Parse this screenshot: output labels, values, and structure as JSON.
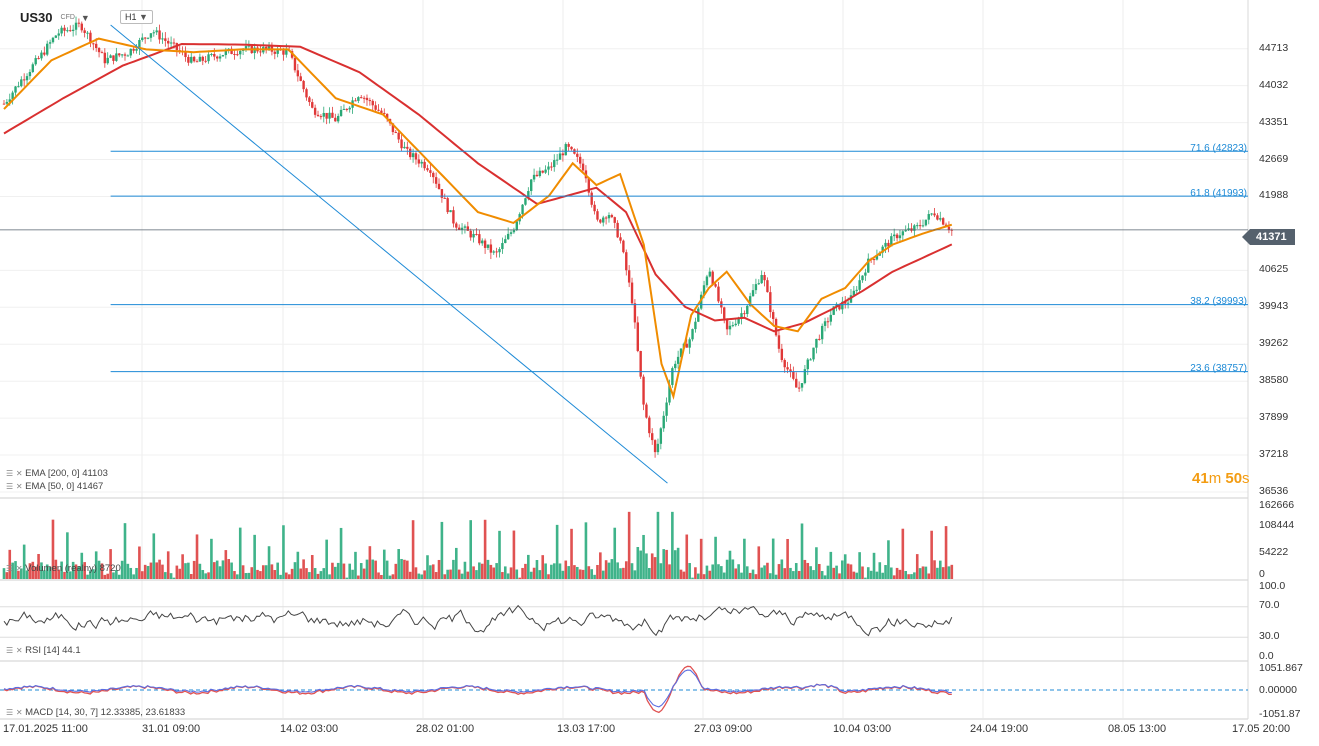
{
  "header": {
    "symbol": "US30",
    "class": "CFD",
    "timeframe": "H1"
  },
  "current_price": "41371",
  "timer": {
    "m": "41",
    "m_unit": "m",
    "s": "50",
    "s_unit": "s"
  },
  "indicators": {
    "ema200": "EMA [200,  0]  41103",
    "ema50": "EMA [50,  0]  41467",
    "volume": "Volumen (realny)  8720",
    "rsi": "RSI  [14]  44.1",
    "macd": "MACD  [14,  30,  7]  12.33385,   23.61833"
  },
  "fib_labels": [
    "71.6 (42823)",
    "61.8 (41993)",
    "38.2 (39993)",
    "23.6 (38757)"
  ],
  "colors": {
    "up": "#2aa876",
    "down": "#e03838",
    "ema50": "#f08c00",
    "ema200": "#d93030",
    "fib": "#1d8ad6",
    "rsi": "#444444"
  },
  "chart_data": {
    "type": "line",
    "title": "US30 CFD H1",
    "price_ticks": [
      "44713",
      "44032",
      "43351",
      "42669",
      "41988",
      "40625",
      "39943",
      "39262",
      "38580",
      "37899",
      "37218",
      "36536"
    ],
    "volume_ticks": [
      "162666",
      "108444",
      "54222",
      "0"
    ],
    "rsi_ticks": [
      "100.0",
      "70.0",
      "30.0",
      "0.0"
    ],
    "macd_ticks": [
      "1051.867",
      "0.00000",
      "-1051.87"
    ],
    "x_labels": [
      "17.01.2025  11:00",
      "31.01  09:00",
      "14.02  03:00",
      "28.02  01:00",
      "13.03  17:00",
      "27.03  09:00",
      "10.04  03:00",
      "24.04  19:00",
      "08.05  13:00",
      "17.05  20:00"
    ],
    "ylim": [
      36536,
      45280
    ],
    "series": [
      {
        "name": "close",
        "x": [
          0,
          3,
          6,
          9,
          13,
          17,
          21,
          25,
          28,
          32,
          36,
          40,
          44,
          48,
          52,
          56,
          60,
          64,
          68,
          72,
          76,
          80,
          83,
          86,
          89,
          92,
          95,
          98,
          100,
          102,
          104,
          106,
          108,
          110,
          113,
          116,
          119,
          122,
          125,
          128,
          131,
          134,
          137,
          140,
          143,
          146,
          148,
          151,
          154,
          157,
          160
        ],
        "values": [
          43700,
          44150,
          44550,
          45000,
          45150,
          44500,
          44650,
          45050,
          44800,
          44450,
          44600,
          44700,
          44700,
          44650,
          43600,
          43400,
          43900,
          43500,
          42800,
          42500,
          41500,
          41200,
          40900,
          41400,
          42300,
          42500,
          42900,
          42500,
          41500,
          41700,
          41200,
          40100,
          38100,
          37200,
          38900,
          39400,
          40700,
          39500,
          39900,
          40600,
          39100,
          38400,
          39300,
          39900,
          40100,
          40800,
          41000,
          41300,
          41400,
          41700,
          41371
        ]
      },
      {
        "name": "EMA [200, 0]",
        "x": [
          0,
          10,
          20,
          30,
          40,
          50,
          60,
          70,
          80,
          90,
          100,
          105,
          110,
          115,
          120,
          125,
          130,
          135,
          140,
          145,
          150,
          160
        ],
        "values": [
          43150,
          43800,
          44400,
          44800,
          44790,
          44750,
          44280,
          43500,
          42600,
          41850,
          42150,
          41700,
          40550,
          39950,
          39700,
          39750,
          39500,
          39650,
          39920,
          40250,
          40600,
          41103
        ]
      },
      {
        "name": "EMA [50, 0]",
        "x": [
          0,
          8,
          16,
          24,
          32,
          40,
          48,
          56,
          64,
          72,
          80,
          86,
          92,
          96,
          100,
          104,
          108,
          111,
          113,
          116,
          119,
          122,
          126,
          130,
          134,
          138,
          142,
          146,
          150,
          155,
          160
        ],
        "values": [
          43600,
          44500,
          44900,
          44700,
          44650,
          44700,
          44700,
          43800,
          43500,
          42600,
          41700,
          41500,
          42000,
          42600,
          42200,
          42400,
          41100,
          38900,
          38300,
          39800,
          40300,
          40600,
          40000,
          39600,
          39500,
          40100,
          40300,
          40800,
          41100,
          41300,
          41467
        ]
      }
    ],
    "fibonacci": [
      {
        "level": "71.6",
        "price": 42823
      },
      {
        "level": "61.8",
        "price": 41993
      },
      {
        "level": "38.2",
        "price": 39993
      },
      {
        "level": "23.6",
        "price": 38757
      }
    ],
    "trendline": {
      "from": [
        18,
        45150
      ],
      "to": [
        112,
        36700
      ]
    },
    "legend": "bottom-left",
    "grid": true
  }
}
